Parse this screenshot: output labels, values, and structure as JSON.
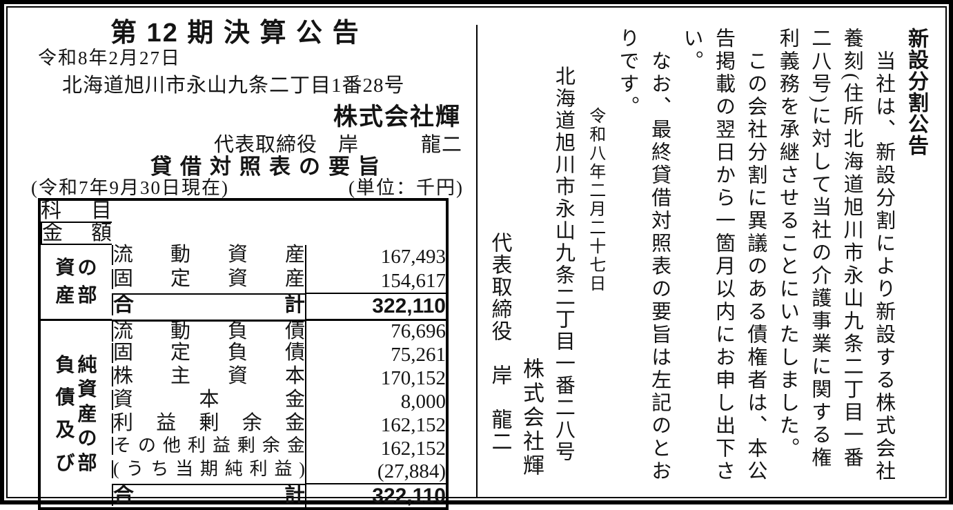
{
  "left": {
    "title": "第 12 期 決 算 公 告",
    "date": "令和8年2月27日",
    "address": "北海道旭川市永山九条二丁目1番28号",
    "company": "株式会社輝",
    "representative": "代表取締役　岸　　　龍二",
    "bs_title": "貸借対照表の要旨",
    "bs_date_note": "(令和7年9月30日現在)",
    "bs_unit_note": "(単位：千円)",
    "table": {
      "header_item": "科目",
      "header_amount": "金額",
      "sections": [
        {
          "category_lines": [
            "資産",
            "の部"
          ],
          "rows": [
            {
              "item": "流動資産",
              "amount": "167,493"
            },
            {
              "item": "固定資産",
              "amount": "154,617"
            },
            {
              "item": "合計",
              "amount": "322,110"
            }
          ]
        },
        {
          "category_lines": [
            "負債及び",
            "純資産の部"
          ],
          "rows": [
            {
              "item": "流動負債",
              "amount": "76,696"
            },
            {
              "item": "固定負債",
              "amount": "75,261"
            },
            {
              "item": "株主資本",
              "amount": "170,152"
            },
            {
              "item": "資本金",
              "amount": "8,000"
            },
            {
              "item": "利益剰余金",
              "amount": "162,152"
            },
            {
              "item": "その他利益剰余金",
              "amount": "162,152"
            },
            {
              "item": "(うち当期純利益)",
              "amount": "(27,884)"
            },
            {
              "item": "合計",
              "amount": "322,110"
            }
          ]
        }
      ]
    }
  },
  "right": {
    "columns": [
      "新設分割公告",
      "当社は、新設分割により新設する株式会社",
      "養刻(住所北海道旭川市永山九条二丁目一番",
      "二八号)に対して当社の介護事業に関する権",
      "利義務を承継させることにいたしました。",
      "この会社分割に異議のある債権者は、本公",
      "告掲載の翌日から一箇月以内にお申し出下さ",
      "い。",
      "なお、最終貸借対照表の要旨は左記のとお",
      "りです。",
      "令和八年二月二十七日",
      "北海道旭川市永山九条二丁目一番二八号",
      "株式会社輝",
      "代表取締役　岸　龍二"
    ]
  }
}
